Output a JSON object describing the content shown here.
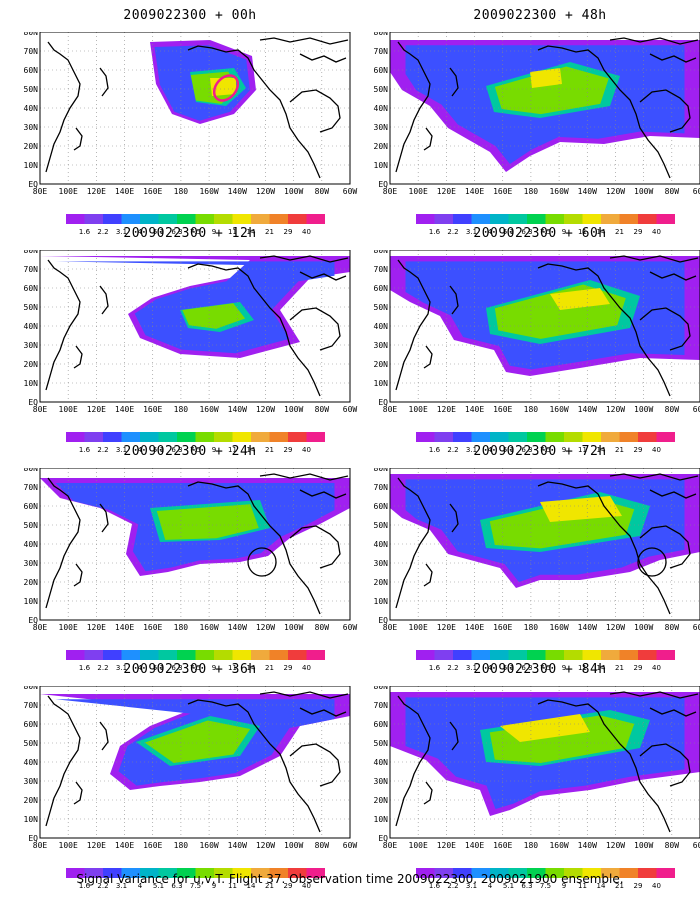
{
  "panels": [
    {
      "title": "2009022300 + 00h",
      "lead": "00h"
    },
    {
      "title": "2009022300 + 48h",
      "lead": "48h"
    },
    {
      "title": "2009022300 + 12h",
      "lead": "12h"
    },
    {
      "title": "2009022300 + 60h",
      "lead": "60h"
    },
    {
      "title": "2009022300 + 24h",
      "lead": "24h"
    },
    {
      "title": "2009022300 + 72h",
      "lead": "72h"
    },
    {
      "title": "2009022300 + 36h",
      "lead": "36h"
    },
    {
      "title": "2009022300 + 84h",
      "lead": "84h"
    }
  ],
  "axes": {
    "lat_labels": [
      "80N",
      "70N",
      "60N",
      "50N",
      "40N",
      "30N",
      "20N",
      "10N",
      "EQ"
    ],
    "lon_labels": [
      "80E",
      "100E",
      "120E",
      "140E",
      "160E",
      "180",
      "160W",
      "140W",
      "120W",
      "100W",
      "80W",
      "60W"
    ]
  },
  "colorbar": {
    "labels": [
      "1.6",
      "2.2",
      "3.1",
      "4",
      "5.1",
      "6.3",
      "7.5",
      "9",
      "11",
      "14",
      "21",
      "29",
      "40"
    ],
    "colors": [
      "#a020f0",
      "#7f3ff0",
      "#4040ff",
      "#1e90ff",
      "#00b4c8",
      "#00c8a0",
      "#00d250",
      "#78dc00",
      "#b4dc00",
      "#f0e600",
      "#f0aa3c",
      "#f08228",
      "#f03c3c",
      "#f01e8c"
    ]
  },
  "caption": "Signal Variance for u,v,T. Flight 37. Observation time 2009022300. 2009021900 ensemble."
}
